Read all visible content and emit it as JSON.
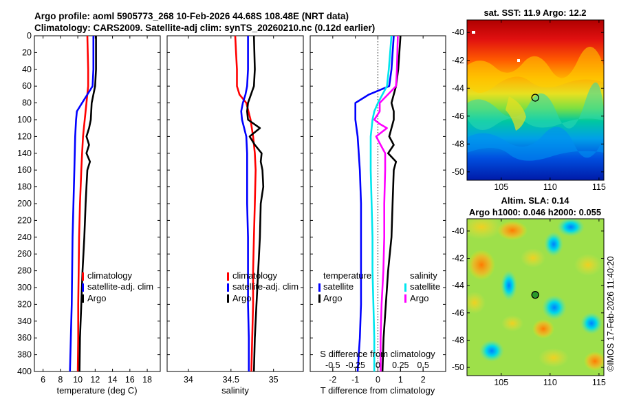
{
  "header": {
    "title_line1": "Argo profile: aoml 5905773_268 10-Feb-2026 44.68S 108.48E (NRT data)",
    "title_line2": "Climatology: CARS2009. Satellite-adj clim: synTS_20260210.nc (0.12d earlier)"
  },
  "colors": {
    "climatology": "#ff0000",
    "satellite": "#0000ff",
    "argo": "#000000",
    "sal_satellite": "#00e6ee",
    "sal_argo": "#ff00ff"
  },
  "chart_data": [
    {
      "id": "temperature",
      "type": "line",
      "xlabel": "temperature (deg C)",
      "ylabel": "",
      "xlim": [
        5,
        19.5
      ],
      "ylim": [
        0,
        400
      ],
      "yreversed": true,
      "xticks": [
        6,
        8,
        10,
        12,
        14,
        16,
        18
      ],
      "xtick_labels": [
        "6",
        "8",
        "10",
        "12",
        "14",
        "16",
        "18"
      ],
      "yticks": [
        0,
        20,
        40,
        60,
        80,
        100,
        120,
        140,
        160,
        180,
        200,
        220,
        240,
        260,
        280,
        300,
        320,
        340,
        360,
        380,
        400
      ],
      "ytick_labels": [
        "0",
        "20",
        "40",
        "60",
        "80",
        "100",
        "120",
        "140",
        "160",
        "180",
        "200",
        "220",
        "240",
        "260",
        "280",
        "300",
        "320",
        "340",
        "360",
        "380",
        "400"
      ],
      "legend": [
        "climatology",
        "satellite-adj. clim",
        "Argo"
      ],
      "legend_position": "lower-right",
      "series": [
        {
          "name": "climatology",
          "depth": [
            0,
            40,
            60,
            80,
            100,
            120,
            140,
            160,
            200,
            240,
            280,
            320,
            360,
            400
          ],
          "values": [
            11.1,
            11.2,
            11.2,
            11.0,
            10.8,
            10.6,
            10.5,
            10.4,
            10.25,
            10.15,
            10.1,
            10.05,
            10.05,
            10.0
          ]
        },
        {
          "name": "satellite-adj. clim",
          "depth": [
            0,
            40,
            60,
            80,
            90,
            100,
            120,
            140,
            160,
            200,
            240,
            280,
            320,
            360,
            400
          ],
          "values": [
            11.8,
            11.8,
            11.7,
            10.5,
            9.9,
            9.8,
            9.7,
            9.65,
            9.6,
            9.5,
            9.4,
            9.35,
            9.3,
            9.2,
            9.1
          ]
        },
        {
          "name": "Argo",
          "depth": [
            0,
            40,
            60,
            70,
            80,
            100,
            110,
            120,
            130,
            140,
            150,
            160,
            180,
            200,
            240,
            280,
            320,
            360,
            400
          ],
          "values": [
            12.1,
            12.1,
            12.0,
            11.8,
            11.6,
            11.5,
            11.3,
            11.0,
            11.3,
            11.0,
            11.4,
            11.1,
            11.0,
            10.9,
            10.75,
            10.55,
            10.4,
            10.25,
            10.2
          ]
        }
      ]
    },
    {
      "id": "salinity",
      "type": "line",
      "xlabel": "salinity",
      "ylabel": "",
      "xlim": [
        33.75,
        35.35
      ],
      "ylim": [
        0,
        400
      ],
      "yreversed": true,
      "xticks": [
        34,
        34.5,
        35
      ],
      "xtick_labels": [
        "34",
        "34.5",
        "35"
      ],
      "legend": [
        "climatology",
        "satellite-adj. clim",
        "Argo"
      ],
      "legend_position": "lower-right",
      "series": [
        {
          "name": "climatology",
          "depth": [
            0,
            20,
            40,
            60,
            70,
            80,
            100,
            120,
            140,
            160,
            200,
            240,
            280,
            320,
            360,
            400
          ],
          "values": [
            34.55,
            34.56,
            34.57,
            34.57,
            34.6,
            34.68,
            34.73,
            34.76,
            34.78,
            34.79,
            34.78,
            34.77,
            34.76,
            34.76,
            34.75,
            34.74
          ]
        },
        {
          "name": "satellite-adj. clim",
          "depth": [
            0,
            40,
            60,
            70,
            80,
            90,
            100,
            120,
            140,
            160,
            200,
            240,
            280,
            320,
            360,
            400
          ],
          "values": [
            34.7,
            34.7,
            34.69,
            34.67,
            34.64,
            34.62,
            34.63,
            34.68,
            34.69,
            34.69,
            34.69,
            34.7,
            34.7,
            34.7,
            34.71,
            34.71
          ],
          "note": ""
        },
        {
          "name": "Argo",
          "depth": [
            0,
            40,
            60,
            80,
            90,
            100,
            110,
            115,
            120,
            130,
            140,
            150,
            160,
            180,
            200,
            240,
            280,
            320,
            360,
            400
          ],
          "values": [
            34.77,
            34.78,
            34.77,
            34.7,
            34.69,
            34.7,
            34.84,
            34.78,
            34.72,
            34.78,
            34.86,
            34.85,
            34.87,
            34.88,
            34.85,
            34.84,
            34.82,
            34.8,
            34.78,
            34.77
          ]
        }
      ]
    },
    {
      "id": "difference",
      "type": "line",
      "xlabel": "T difference from climatology",
      "top_axis_label": "S difference from climatology",
      "xlim": [
        -3,
        3
      ],
      "ylim": [
        0,
        400
      ],
      "yreversed": true,
      "xticks": [
        -2,
        -1,
        0,
        1,
        2
      ],
      "xtick_labels": [
        "-2",
        "-1",
        "0",
        "1",
        "2"
      ],
      "s_xlim": [
        -0.75,
        0.75
      ],
      "s_ticks": [
        -0.5,
        -0.25,
        0,
        0.25,
        0.5
      ],
      "s_tick_labels": [
        "-0.5",
        "-0.25",
        "0",
        "0.25",
        "0.5"
      ],
      "zero_line": "dotted",
      "legend_groups": [
        {
          "heading": "temperature",
          "entries": [
            "satellite",
            "Argo"
          ]
        },
        {
          "heading": "salinity",
          "entries": [
            "satellite",
            "Argo"
          ]
        }
      ],
      "series": [
        {
          "name": "temperature satellite",
          "axis": "T",
          "depth": [
            0,
            40,
            60,
            70,
            80,
            90,
            100,
            120,
            140,
            160,
            200,
            240,
            280,
            320,
            360,
            400
          ],
          "values": [
            0.7,
            0.6,
            0.5,
            -0.4,
            -1.0,
            -1.0,
            -1.0,
            -0.9,
            -0.85,
            -0.8,
            -0.75,
            -0.75,
            -0.75,
            -0.75,
            -0.8,
            -0.9
          ]
        },
        {
          "name": "temperature Argo",
          "axis": "T",
          "depth": [
            0,
            40,
            60,
            80,
            90,
            100,
            110,
            120,
            130,
            140,
            150,
            160,
            200,
            240,
            280,
            320,
            360,
            400
          ],
          "values": [
            1.0,
            0.9,
            0.8,
            0.6,
            0.7,
            0.7,
            0.6,
            0.5,
            0.7,
            0.45,
            0.8,
            0.7,
            0.65,
            0.6,
            0.45,
            0.35,
            0.25,
            0.2
          ]
        },
        {
          "name": "salinity satellite",
          "axis": "S",
          "depth": [
            0,
            40,
            60,
            80,
            90,
            100,
            120,
            140,
            160,
            200,
            240,
            280,
            320,
            360,
            400
          ],
          "values": [
            0.15,
            0.12,
            0.1,
            0.0,
            -0.04,
            -0.06,
            -0.08,
            -0.08,
            -0.08,
            -0.07,
            -0.06,
            -0.06,
            -0.05,
            -0.04,
            -0.04
          ]
        },
        {
          "name": "salinity Argo",
          "axis": "S",
          "depth": [
            0,
            40,
            60,
            80,
            90,
            100,
            105,
            110,
            120,
            130,
            140,
            160,
            200,
            240,
            280,
            320,
            360,
            400
          ],
          "values": [
            0.22,
            0.21,
            0.2,
            0.02,
            0.02,
            -0.04,
            0.02,
            0.1,
            -0.02,
            0.03,
            0.08,
            0.08,
            0.07,
            0.07,
            0.06,
            0.04,
            0.03,
            0.03
          ]
        }
      ]
    },
    {
      "id": "sst_map",
      "type": "heatmap",
      "title": "sat. SST: 11.9 Argo: 12.2",
      "xlim": [
        101.5,
        115.5
      ],
      "ylim": [
        -50.6,
        -39.1
      ],
      "xticks": [
        105,
        110,
        115
      ],
      "xtick_labels": [
        "105",
        "110",
        "115"
      ],
      "yticks": [
        -40,
        -42,
        -44,
        -46,
        -48,
        -50
      ],
      "ytick_labels": [
        "-40",
        "-42",
        "-44",
        "-46",
        "-48",
        "-50"
      ],
      "marker": {
        "lon": 108.48,
        "lat": -44.68
      }
    },
    {
      "id": "sla_map",
      "type": "heatmap",
      "title_line1": "Altim. SLA: 0.14",
      "title_line2": "Argo h1000: 0.046 h2000: 0.055",
      "xlim": [
        101.5,
        115.5
      ],
      "ylim": [
        -50.6,
        -39.1
      ],
      "xticks": [
        105,
        110,
        115
      ],
      "xtick_labels": [
        "105",
        "110",
        "115"
      ],
      "yticks": [
        -40,
        -42,
        -44,
        -46,
        -48,
        -50
      ],
      "ytick_labels": [
        "-40",
        "-42",
        "-44",
        "-46",
        "-48",
        "-50"
      ],
      "marker": {
        "lon": 108.48,
        "lat": -44.68
      }
    }
  ],
  "footer": {
    "stamp": "©IMOS 17-Feb-2026 11:40:20"
  }
}
